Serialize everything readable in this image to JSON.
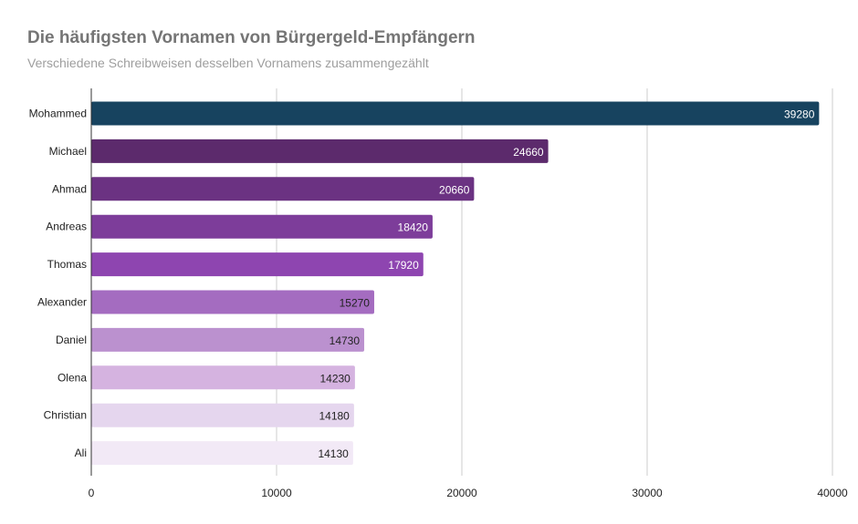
{
  "chart_data": {
    "type": "bar",
    "orientation": "horizontal",
    "title": "Die häufigsten Vornamen von Bürgergeld-Empfängern",
    "subtitle": "Verschiedene Schreibweisen desselben Vornamens zusammengezählt",
    "xlabel": "",
    "ylabel": "",
    "xlim": [
      0,
      40000
    ],
    "x_ticks": [
      0,
      10000,
      20000,
      30000,
      40000
    ],
    "grid": "vertical",
    "categories": [
      "Mohammed",
      "Michael",
      "Ahmad",
      "Andreas",
      "Thomas",
      "Alexander",
      "Daniel",
      "Olena",
      "Christian",
      "Ali"
    ],
    "values": [
      39280,
      24660,
      20660,
      18420,
      17920,
      15270,
      14730,
      14230,
      14180,
      14130
    ],
    "colors": [
      "#17435f",
      "#5c2a6c",
      "#6b3282",
      "#7d3d9a",
      "#8e45b0",
      "#a46cc0",
      "#bb91cf",
      "#d5b3e0",
      "#e5d6ee",
      "#f2e9f6"
    ],
    "label_colors": [
      "#ffffff",
      "#ffffff",
      "#ffffff",
      "#ffffff",
      "#ffffff",
      "#222222",
      "#222222",
      "#222222",
      "#222222",
      "#222222"
    ]
  }
}
